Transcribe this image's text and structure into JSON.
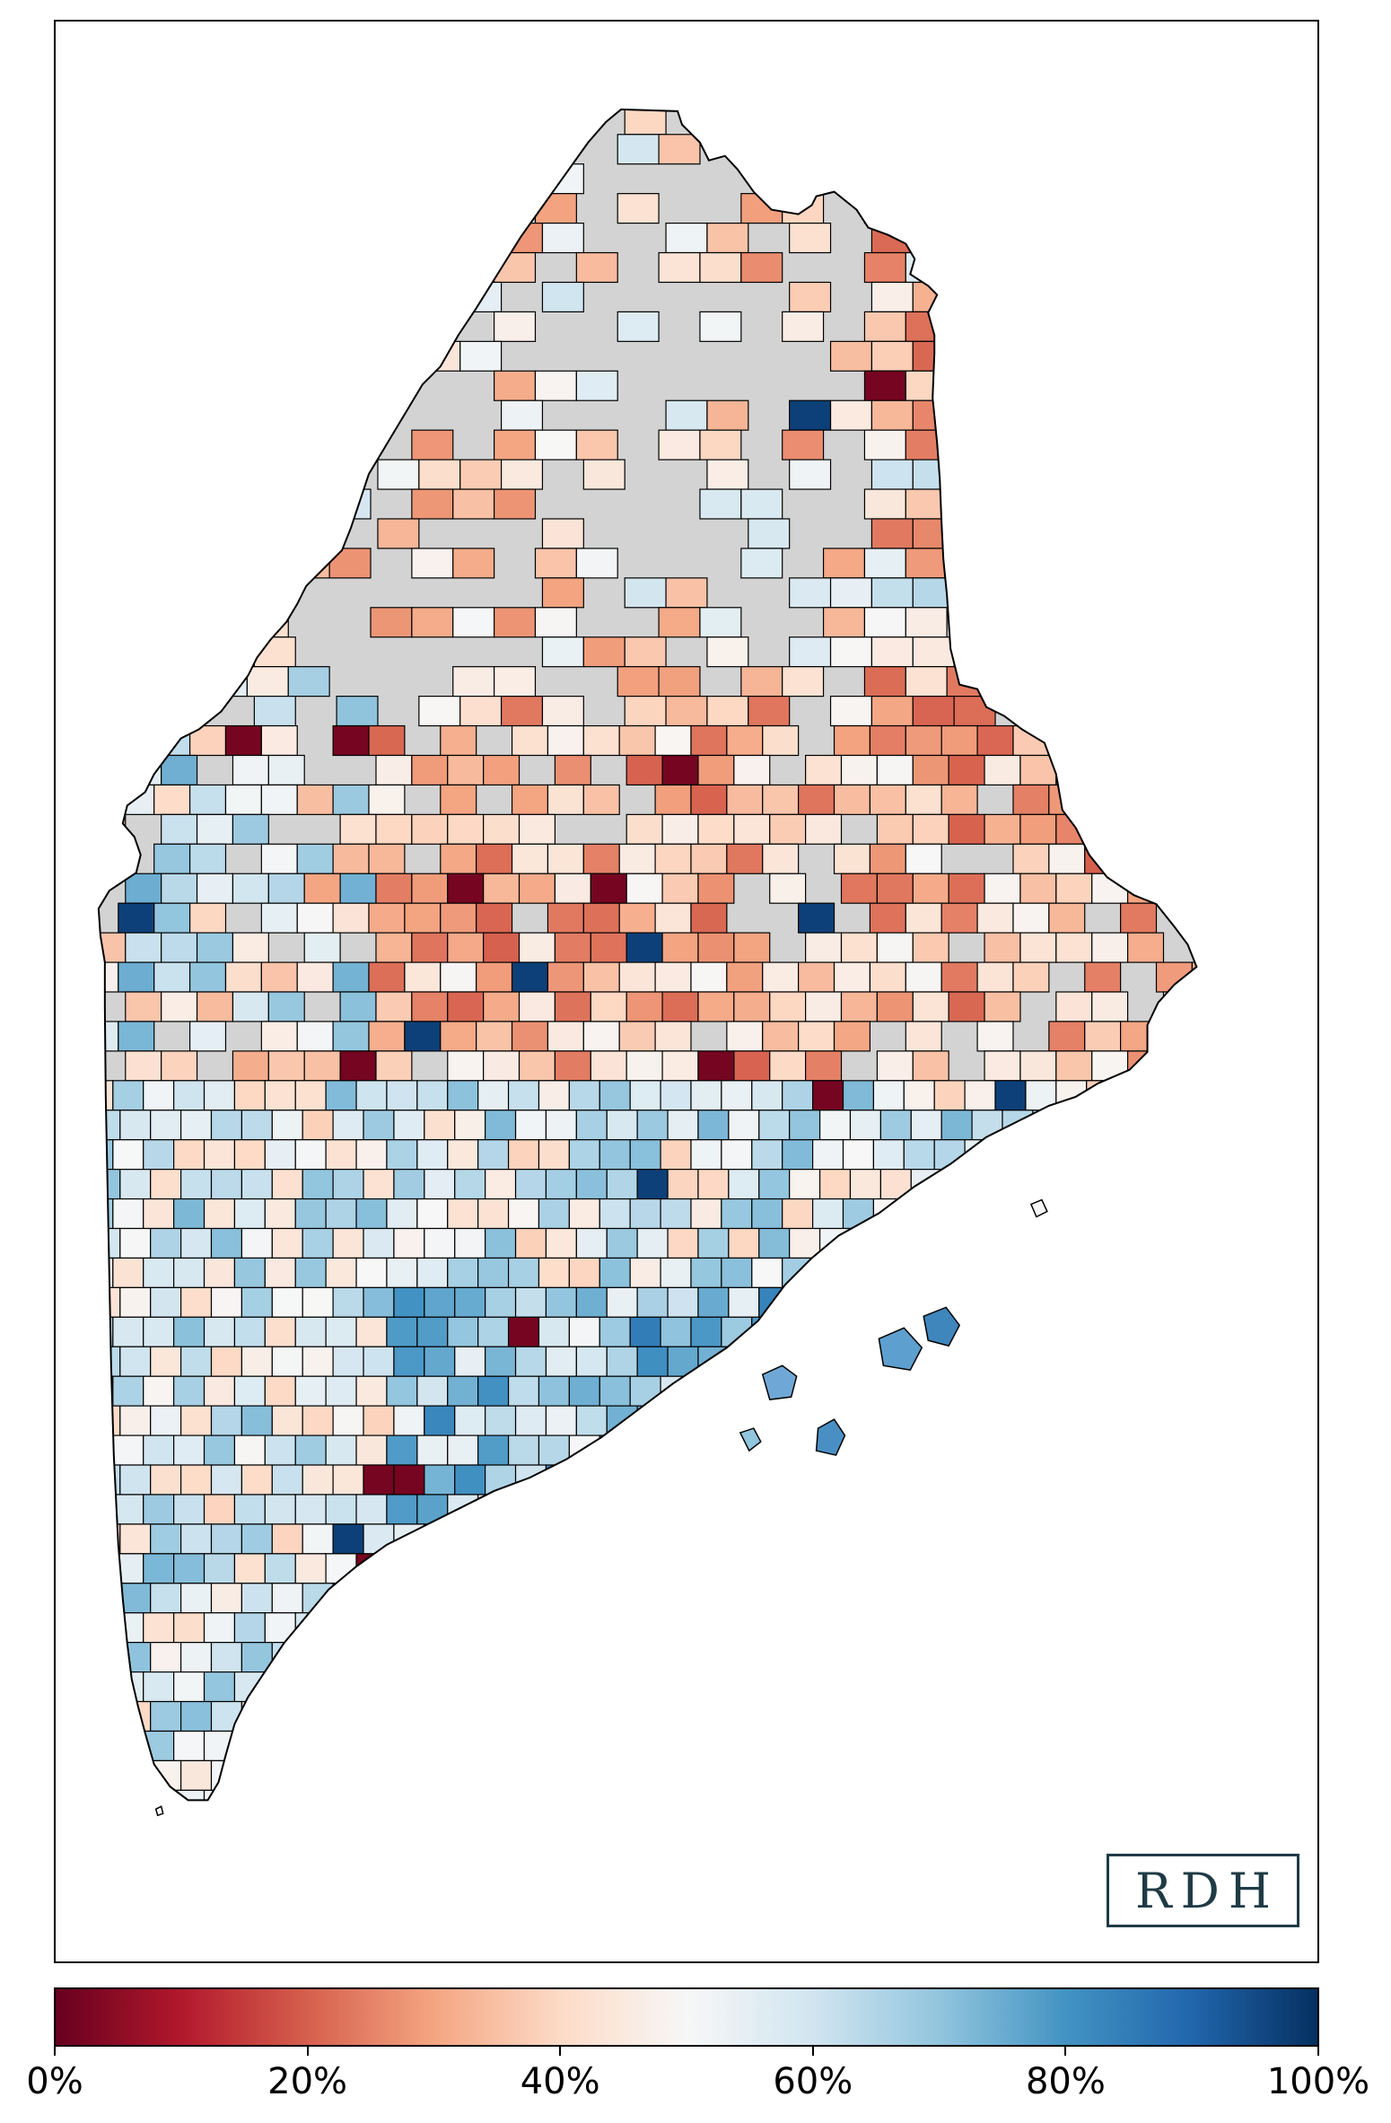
{
  "logo": {
    "text": "RDH"
  },
  "colorbar": {
    "min": 0,
    "max": 100,
    "colors": [
      "#67001f",
      "#b2182b",
      "#d6604d",
      "#f4a582",
      "#fddbc7",
      "#f7f7f7",
      "#d1e5f0",
      "#92c5de",
      "#4393c3",
      "#2166ac",
      "#053061"
    ],
    "ticks": [
      "0%",
      "20%",
      "40%",
      "60%",
      "80%",
      "100%"
    ]
  },
  "map": {
    "no_data_color": "#d3d3d3",
    "border_color": "#000000"
  }
}
